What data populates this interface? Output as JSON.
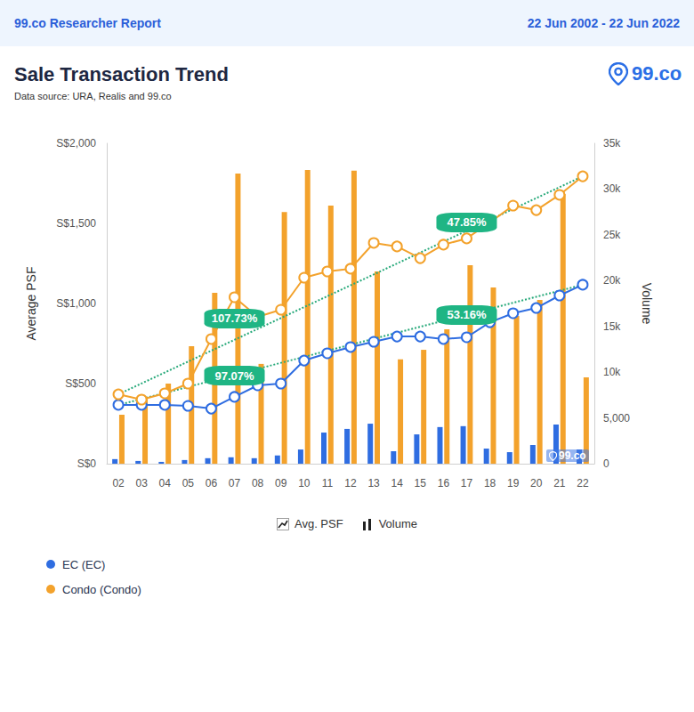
{
  "chart_data": {
    "type": "bar",
    "header_left": "99.co Researcher Report",
    "header_right": "22 Jun 2002 - 22 Jun 2022",
    "title": "Sale Transaction Trend",
    "subtitle": "Data source: URA, Realis and 99.co",
    "logo": "99.co",
    "watermark": "99.co",
    "ylabel": "Average PSF",
    "y2label": "Volume",
    "categories": [
      "02",
      "03",
      "04",
      "05",
      "06",
      "07",
      "08",
      "09",
      "10",
      "11",
      "12",
      "13",
      "14",
      "15",
      "16",
      "17",
      "18",
      "19",
      "20",
      "21",
      "22"
    ],
    "ylim": [
      0,
      2000
    ],
    "yticks": [
      {
        "value": 0,
        "label": "S$0"
      },
      {
        "value": 500,
        "label": "S$500"
      },
      {
        "value": 1000,
        "label": "S$1,000"
      },
      {
        "value": 1500,
        "label": "S$1,500"
      },
      {
        "value": 2000,
        "label": "S$2,000"
      }
    ],
    "y2lim": [
      0,
      35000
    ],
    "y2ticks": [
      0,
      {
        "value": 5000,
        "label": "5,000"
      },
      {
        "value": 10000,
        "label": "10k"
      },
      {
        "value": 15000,
        "label": "15k"
      },
      {
        "value": 20000,
        "label": "20k"
      },
      {
        "value": 25000,
        "label": "25k"
      },
      {
        "value": 30000,
        "label": "30k"
      },
      {
        "value": 35000,
        "label": "35k"
      }
    ],
    "grid": false,
    "legend_types": [
      {
        "type": "line",
        "label": "Avg. PSF"
      },
      {
        "type": "bar",
        "label": "Volume"
      }
    ],
    "series": [
      {
        "name": "EC (EC)",
        "type": "bar",
        "axis": "y2",
        "color": "#2f6de1",
        "values": [
          500,
          300,
          200,
          400,
          600,
          700,
          600,
          900,
          1550,
          3400,
          3800,
          4370,
          1360,
          3200,
          4000,
          4100,
          1650,
          1260,
          2040,
          4280,
          1550
        ]
      },
      {
        "name": "Condo (Condo)",
        "type": "bar",
        "axis": "y2",
        "color": "#f3a22c",
        "values": [
          5350,
          7300,
          8750,
          12830,
          18660,
          31700,
          10900,
          27500,
          32080,
          28200,
          32000,
          21000,
          11400,
          12440,
          14680,
          21680,
          19250,
          16130,
          17900,
          29460,
          9430
        ]
      },
      {
        "name": "EC (EC)",
        "type": "line",
        "marker": "circle_open",
        "color": "#2f6de1",
        "values": [
          367,
          367,
          367,
          361,
          344,
          417,
          489,
          500,
          644,
          689,
          728,
          761,
          794,
          794,
          778,
          789,
          883,
          939,
          972,
          1050,
          1117
        ]
      },
      {
        "name": "Condo (Condo)",
        "type": "line",
        "marker": "circle_open",
        "color": "#f3a22c",
        "values": [
          433,
          400,
          439,
          500,
          778,
          1039,
          917,
          961,
          1161,
          1200,
          1217,
          1378,
          1356,
          1283,
          1367,
          1406,
          1506,
          1611,
          1583,
          1678,
          1794
        ]
      },
      {
        "type": "line",
        "line_style": "dotted",
        "color": "#27a97a",
        "values": [
          367,
          null,
          null,
          null,
          null,
          null,
          null,
          null,
          null,
          null,
          null,
          null,
          null,
          null,
          null,
          null,
          null,
          null,
          null,
          null,
          1117
        ]
      },
      {
        "type": "line",
        "line_style": "dotted",
        "color": "#27a97a",
        "values": [
          433,
          null,
          null,
          null,
          null,
          null,
          null,
          null,
          null,
          null,
          null,
          null,
          null,
          null,
          null,
          null,
          null,
          null,
          null,
          null,
          1794
        ]
      }
    ],
    "annotations": [
      {
        "text": "107.73%",
        "x": "07",
        "y": 906,
        "color": "#1fb584"
      },
      {
        "text": "97.07%",
        "x": "07",
        "y": 550,
        "color": "#1fb584"
      },
      {
        "text": "47.85%",
        "x": "17",
        "y": 1506,
        "color": "#1fb584"
      },
      {
        "text": "53.16%",
        "x": "17",
        "y": 928,
        "color": "#1fb584"
      }
    ]
  }
}
